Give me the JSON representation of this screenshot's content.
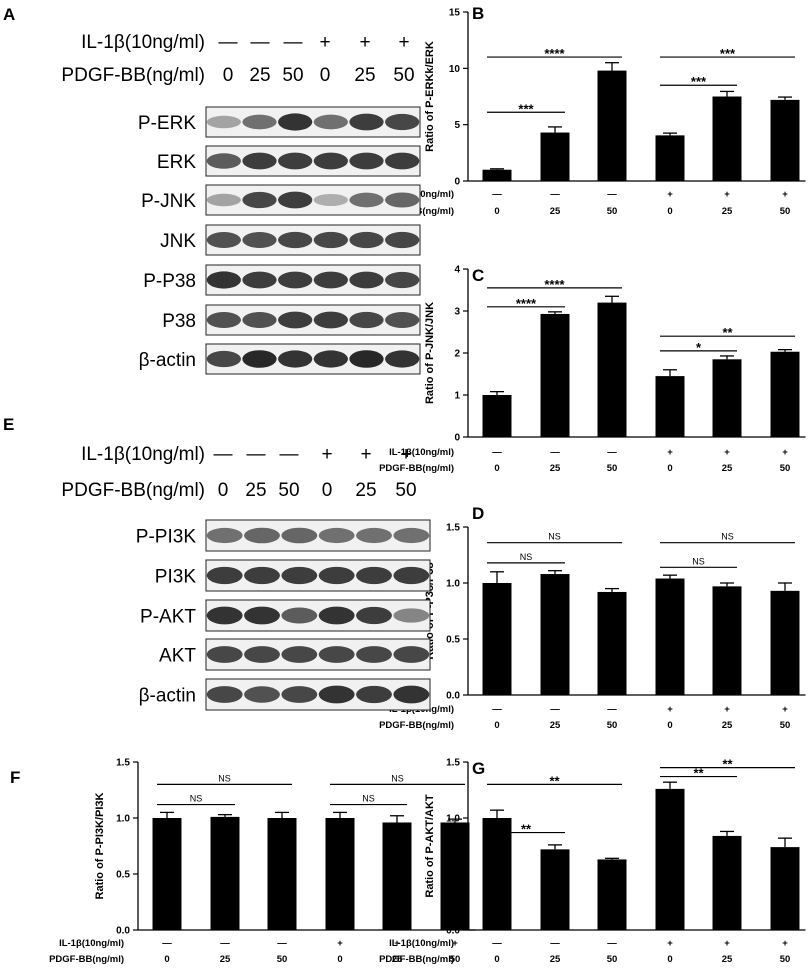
{
  "blots": [
    {
      "id": "A",
      "label": "A",
      "conditions": {
        "il1b_label": "IL-1β(10ng/ml)",
        "il1b": [
          "—",
          "—",
          "—",
          "+",
          "+",
          "+"
        ],
        "pdgf_label": "PDGF-BB(ng/ml)",
        "pdgf": [
          "0",
          "25",
          "50",
          "0",
          "25",
          "50"
        ]
      },
      "bands": [
        "P-ERK",
        "ERK",
        "P-JNK",
        "JNK",
        "P-P38",
        "P38",
        "β-actin"
      ]
    },
    {
      "id": "E",
      "label": "E",
      "conditions": {
        "il1b_label": "IL-1β(10ng/ml)",
        "il1b": [
          "—",
          "—",
          "—",
          "+",
          "+",
          "+"
        ],
        "pdgf_label": "PDGF-BB(ng/ml)",
        "pdgf": [
          "0",
          "25",
          "50",
          "0",
          "25",
          "50"
        ]
      },
      "bands": [
        "P-PI3K",
        "PI3K",
        "P-AKT",
        "AKT",
        "β-actin"
      ]
    }
  ],
  "chart_data": [
    {
      "id": "B",
      "label": "B",
      "type": "bar",
      "ylabel": "Ratio of P-ERKk/ERK",
      "ylim": [
        0,
        15
      ],
      "yticks": [
        "0",
        "5",
        "10",
        "15"
      ],
      "values": [
        1.0,
        4.3,
        9.8,
        4.05,
        7.5,
        7.2
      ],
      "errors": [
        0.08,
        0.5,
        0.7,
        0.2,
        0.45,
        0.25
      ],
      "conditions": {
        "il1b_label": "IL-1β(10ng/ml)",
        "il1b": [
          "—",
          "—",
          "—",
          "+",
          "+",
          "+"
        ],
        "pdgf_label": "PDGF-BB(ng/ml)",
        "pdgf": [
          "0",
          "25",
          "50",
          "0",
          "25",
          "50"
        ]
      },
      "comparisons": [
        {
          "from": 0,
          "to": 1,
          "label": "***",
          "y": 6.1
        },
        {
          "from": 0,
          "to": 2,
          "label": "****",
          "y": 11.0
        },
        {
          "from": 3,
          "to": 4,
          "label": "***",
          "y": 8.5
        },
        {
          "from": 3,
          "to": 5,
          "label": "***",
          "y": 11.0
        }
      ]
    },
    {
      "id": "C",
      "label": "C",
      "type": "bar",
      "ylabel": "Ratio of P-JNK/JNK",
      "ylim": [
        0,
        4
      ],
      "yticks": [
        "0",
        "1",
        "2",
        "3",
        "4"
      ],
      "values": [
        1.0,
        2.93,
        3.2,
        1.45,
        1.85,
        2.03
      ],
      "errors": [
        0.08,
        0.05,
        0.15,
        0.15,
        0.08,
        0.05
      ],
      "conditions": {
        "il1b_label": "IL-1β(10ng/ml)",
        "il1b": [
          "—",
          "—",
          "—",
          "+",
          "+",
          "+"
        ],
        "pdgf_label": "PDGF-BB(ng/ml)",
        "pdgf": [
          "0",
          "25",
          "50",
          "0",
          "25",
          "50"
        ]
      },
      "comparisons": [
        {
          "from": 0,
          "to": 1,
          "label": "****",
          "y": 3.1
        },
        {
          "from": 0,
          "to": 2,
          "label": "****",
          "y": 3.55
        },
        {
          "from": 3,
          "to": 4,
          "label": "*",
          "y": 2.05
        },
        {
          "from": 3,
          "to": 5,
          "label": "**",
          "y": 2.4
        }
      ]
    },
    {
      "id": "D",
      "label": "D",
      "type": "bar",
      "ylabel": "Ratio of P-P38/P38",
      "ylim": [
        0,
        1.5
      ],
      "yticks": [
        "0.0",
        "0.5",
        "1.0",
        "1.5"
      ],
      "values": [
        1.0,
        1.08,
        0.92,
        1.04,
        0.97,
        0.93
      ],
      "errors": [
        0.1,
        0.03,
        0.03,
        0.03,
        0.03,
        0.07
      ],
      "conditions": {
        "il1b_label": "IL-1β(10ng/ml)",
        "il1b": [
          "—",
          "—",
          "—",
          "+",
          "+",
          "+"
        ],
        "pdgf_label": "PDGF-BB(ng/ml)",
        "pdgf": [
          "0",
          "25",
          "50",
          "0",
          "25",
          "50"
        ]
      },
      "comparisons": [
        {
          "from": 0,
          "to": 1,
          "label": "NS",
          "y": 1.18
        },
        {
          "from": 0,
          "to": 2,
          "label": "NS",
          "y": 1.36
        },
        {
          "from": 3,
          "to": 4,
          "label": "NS",
          "y": 1.14
        },
        {
          "from": 3,
          "to": 5,
          "label": "NS",
          "y": 1.36
        }
      ]
    },
    {
      "id": "F",
      "label": "F",
      "type": "bar",
      "ylabel": "Ratio of P-PI3K/PI3K",
      "ylim": [
        0,
        1.5
      ],
      "yticks": [
        "0.0",
        "0.5",
        "1.0",
        "1.5"
      ],
      "values": [
        1.0,
        1.01,
        1.0,
        1.0,
        0.96,
        0.96
      ],
      "errors": [
        0.05,
        0.02,
        0.05,
        0.05,
        0.06,
        0.03
      ],
      "conditions": {
        "il1b_label": "IL-1β(10ng/ml)",
        "il1b": [
          "—",
          "—",
          "—",
          "+",
          "+",
          "+"
        ],
        "pdgf_label": "PDGF-BB(ng/ml)",
        "pdgf": [
          "0",
          "25",
          "50",
          "0",
          "25",
          "50"
        ]
      },
      "comparisons": [
        {
          "from": 0,
          "to": 1,
          "label": "NS",
          "y": 1.12
        },
        {
          "from": 0,
          "to": 2,
          "label": "NS",
          "y": 1.3
        },
        {
          "from": 3,
          "to": 4,
          "label": "NS",
          "y": 1.12
        },
        {
          "from": 3,
          "to": 5,
          "label": "NS",
          "y": 1.3
        }
      ]
    },
    {
      "id": "G",
      "label": "G",
      "type": "bar",
      "ylabel": "Ratio of P-AKT/AKT",
      "ylim": [
        0,
        1.5
      ],
      "yticks": [
        "0.0",
        "0.5",
        "1.0",
        "1.5"
      ],
      "values": [
        1.0,
        0.72,
        0.63,
        1.26,
        0.84,
        0.74
      ],
      "errors": [
        0.07,
        0.04,
        0.01,
        0.06,
        0.04,
        0.08
      ],
      "conditions": {
        "il1b_label": "IL-1β(10ng/ml)",
        "il1b": [
          "—",
          "—",
          "—",
          "+",
          "+",
          "+"
        ],
        "pdgf_label": "PDGF-BB(ng/ml)",
        "pdgf": [
          "0",
          "25",
          "50",
          "0",
          "25",
          "50"
        ]
      },
      "comparisons": [
        {
          "from": 0,
          "to": 1,
          "label": "**",
          "y": 0.87
        },
        {
          "from": 0,
          "to": 2,
          "label": "**",
          "y": 1.3
        },
        {
          "from": 3,
          "to": 4,
          "label": "**",
          "y": 1.37
        },
        {
          "from": 3,
          "to": 5,
          "label": "**",
          "y": 1.45
        }
      ]
    }
  ]
}
